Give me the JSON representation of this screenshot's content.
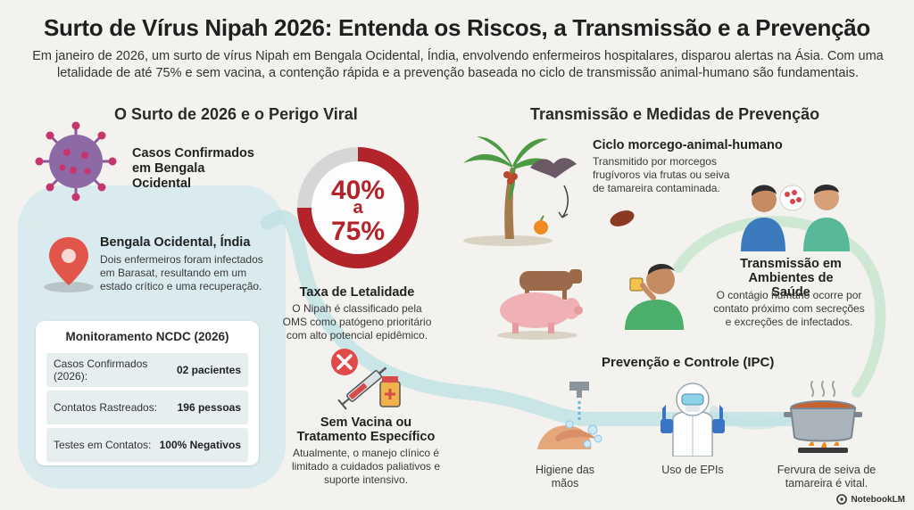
{
  "header": {
    "title": "Surto de Vírus Nipah 2026: Entenda os Riscos, a Transmissão e a Prevenção",
    "subtitle": "Em janeiro de 2026, um surto de vírus Nipah em Bengala Ocidental, Índia, envolvendo enfermeiros hospitalares, disparou alertas na Ásia. Com uma letalidade de até 75% e sem vacina, a contenção rápida e a prevenção baseada no ciclo de transmissão animal-humano são fundamentais."
  },
  "left": {
    "heading": "O Surto de 2026 e o Perigo Viral",
    "cases_label": "Casos Confirmados em Bengala Ocidental",
    "location": {
      "title": "Bengala Ocidental, Índia",
      "text": "Dois enfermeiros foram infectados em Barasat, resultando em um estado crítico e uma recuperação."
    },
    "ncdc": {
      "title": "Monitoramento NCDC (2026)",
      "rows": [
        {
          "label": "Casos Confirmados (2026):",
          "value": "02 pacientes"
        },
        {
          "label": "Contatos Rastreados:",
          "value": "196 pessoas"
        },
        {
          "label": "Testes em Contatos:",
          "value": "100% Negativos"
        }
      ]
    }
  },
  "middle": {
    "lethality": {
      "pct_low": "40%",
      "connector": "a",
      "pct_high": "75%",
      "range_low": 0.4,
      "range_high": 0.75,
      "title": "Taxa de Letalidade",
      "text": "O Nipah é classificado pela OMS como patógeno prioritário com alto potencial epidêmico."
    },
    "vaccine": {
      "title": "Sem Vacina ou Tratamento Específico",
      "text": "Atualmente, o manejo clínico é limitado a cuidados paliativos e suporte intensivo."
    }
  },
  "right": {
    "heading": "Transmissão e Medidas de Prevenção",
    "cycle": {
      "title": "Ciclo morcego-animal-humano",
      "text": "Transmitido por morcegos frugívoros via frutas ou seiva de tamareira contaminada."
    },
    "health": {
      "title": "Transmissão em Ambientes de Saúde",
      "text": "O contágio humano ocorre por contato próximo com secreções e excreções de infectados."
    },
    "ipc": {
      "title": "Prevenção e Controle (IPC)",
      "items": [
        {
          "label": "Higiene das mãos"
        },
        {
          "label": "Uso de EPIs"
        },
        {
          "label": "Fervura de seiva de tamareira é vital."
        }
      ]
    }
  },
  "brand": "NotebookLM",
  "colors": {
    "accent_red": "#b3242a",
    "ring_grey": "#d6d6d6",
    "teal_band": "#bfe1e3",
    "background": "#f4f2ee"
  }
}
